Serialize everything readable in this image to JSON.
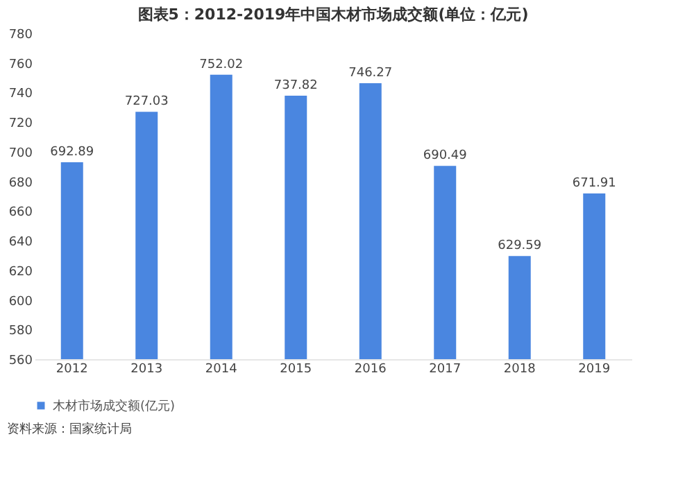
{
  "chart_data": {
    "type": "bar",
    "title": "图表5：2012-2019年中国木材市场成交额(单位：亿元)",
    "categories": [
      "2012",
      "2013",
      "2014",
      "2015",
      "2016",
      "2017",
      "2018",
      "2019"
    ],
    "series": [
      {
        "name": "木材市场成交额(亿元)",
        "color": "#4a86e0",
        "values": [
          692.89,
          727.03,
          752.02,
          737.82,
          746.27,
          690.49,
          629.59,
          671.91
        ]
      }
    ],
    "ylim": [
      560,
      780
    ],
    "yticks": [
      560,
      580,
      600,
      620,
      640,
      660,
      680,
      700,
      720,
      740,
      760,
      780
    ],
    "data_labels": true,
    "grid": false,
    "legend": "bottom",
    "annotations": [
      "资料来源：国家统计局"
    ]
  }
}
